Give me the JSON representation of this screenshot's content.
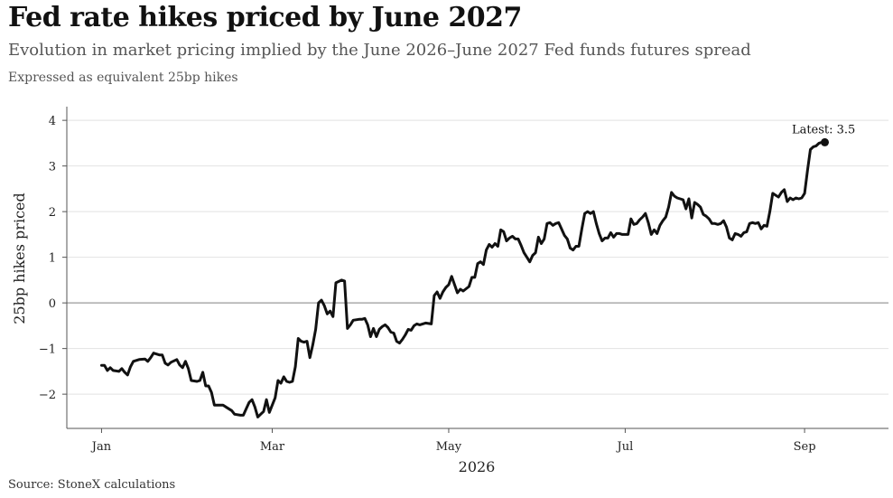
{
  "title": "Fed rate hikes priced by June 2027",
  "subtitle": "Evolution in market pricing implied by the June 2026–June 2027 Fed funds futures spread",
  "note": "Expressed as equivalent 25bp hikes",
  "source": "Source: StoneX calculations",
  "chart_data": {
    "type": "line",
    "title": "Fed rate hikes priced by June 2027",
    "xlabel": "2026",
    "ylabel": "25bp hikes priced",
    "ylim": [
      -2.75,
      4.3
    ],
    "yticks": [
      -2,
      -1,
      0,
      1,
      2,
      3,
      4
    ],
    "ytick_labels": [
      "−2",
      "−1",
      "0",
      "1",
      "2",
      "3",
      "4"
    ],
    "xlim": [
      "2025-12-20",
      "2026-09-30"
    ],
    "xticks": [
      {
        "date": "2026-01-01",
        "label": "Jan"
      },
      {
        "date": "2026-03-01",
        "label": "Mar"
      },
      {
        "date": "2026-05-01",
        "label": "May"
      },
      {
        "date": "2026-07-01",
        "label": "Jul"
      },
      {
        "date": "2026-09-01",
        "label": "Sep"
      }
    ],
    "grid": "horizontal",
    "annotation": {
      "text": "Latest: 3.5",
      "date": "2026-09-16",
      "value": 3.52
    },
    "series": [
      {
        "color": "#111111",
        "points": [
          [
            "2026-01-01",
            -1.37
          ],
          [
            "2026-01-02",
            -1.37
          ],
          [
            "2026-01-03",
            -1.48
          ],
          [
            "2026-01-04",
            -1.42
          ],
          [
            "2026-01-05",
            -1.48
          ],
          [
            "2026-01-07",
            -1.5
          ],
          [
            "2026-01-08",
            -1.44
          ],
          [
            "2026-01-09",
            -1.52
          ],
          [
            "2026-01-10",
            -1.58
          ],
          [
            "2026-01-11",
            -1.4
          ],
          [
            "2026-01-12",
            -1.28
          ],
          [
            "2026-01-14",
            -1.24
          ],
          [
            "2026-01-16",
            -1.23
          ],
          [
            "2026-01-17",
            -1.28
          ],
          [
            "2026-01-18",
            -1.2
          ],
          [
            "2026-01-19",
            -1.1
          ],
          [
            "2026-01-21",
            -1.14
          ],
          [
            "2026-01-22",
            -1.14
          ],
          [
            "2026-01-23",
            -1.32
          ],
          [
            "2026-01-24",
            -1.36
          ],
          [
            "2026-01-25",
            -1.3
          ],
          [
            "2026-01-27",
            -1.24
          ],
          [
            "2026-01-28",
            -1.36
          ],
          [
            "2026-01-29",
            -1.42
          ],
          [
            "2026-01-30",
            -1.28
          ],
          [
            "2026-01-31",
            -1.44
          ],
          [
            "2026-02-01",
            -1.7
          ],
          [
            "2026-02-03",
            -1.72
          ],
          [
            "2026-02-04",
            -1.7
          ],
          [
            "2026-02-05",
            -1.52
          ],
          [
            "2026-02-06",
            -1.82
          ],
          [
            "2026-02-07",
            -1.82
          ],
          [
            "2026-02-08",
            -1.96
          ],
          [
            "2026-02-09",
            -2.24
          ],
          [
            "2026-02-11",
            -2.24
          ],
          [
            "2026-02-12",
            -2.24
          ],
          [
            "2026-02-13",
            -2.28
          ],
          [
            "2026-02-15",
            -2.36
          ],
          [
            "2026-02-16",
            -2.44
          ],
          [
            "2026-02-18",
            -2.46
          ],
          [
            "2026-02-19",
            -2.46
          ],
          [
            "2026-02-20",
            -2.32
          ],
          [
            "2026-02-21",
            -2.18
          ],
          [
            "2026-02-22",
            -2.12
          ],
          [
            "2026-02-23",
            -2.28
          ],
          [
            "2026-02-24",
            -2.5
          ],
          [
            "2026-02-25",
            -2.44
          ],
          [
            "2026-02-26",
            -2.38
          ],
          [
            "2026-02-27",
            -2.12
          ],
          [
            "2026-02-28",
            -2.4
          ],
          [
            "2026-03-02",
            -2.08
          ],
          [
            "2026-03-03",
            -1.7
          ],
          [
            "2026-03-04",
            -1.76
          ],
          [
            "2026-03-05",
            -1.62
          ],
          [
            "2026-03-06",
            -1.72
          ],
          [
            "2026-03-07",
            -1.74
          ],
          [
            "2026-03-08",
            -1.72
          ],
          [
            "2026-03-09",
            -1.4
          ],
          [
            "2026-03-10",
            -0.78
          ],
          [
            "2026-03-11",
            -0.84
          ],
          [
            "2026-03-12",
            -0.86
          ],
          [
            "2026-03-13",
            -0.84
          ],
          [
            "2026-03-14",
            -1.2
          ],
          [
            "2026-03-15",
            -0.92
          ],
          [
            "2026-03-16",
            -0.58
          ],
          [
            "2026-03-17",
            0.0
          ],
          [
            "2026-03-18",
            0.06
          ],
          [
            "2026-03-19",
            -0.06
          ],
          [
            "2026-03-20",
            -0.24
          ],
          [
            "2026-03-21",
            -0.18
          ],
          [
            "2026-03-22",
            -0.3
          ],
          [
            "2026-03-23",
            0.44
          ],
          [
            "2026-03-25",
            0.5
          ],
          [
            "2026-03-26",
            0.48
          ],
          [
            "2026-03-27",
            -0.56
          ],
          [
            "2026-03-28",
            -0.48
          ],
          [
            "2026-03-29",
            -0.38
          ],
          [
            "2026-03-31",
            -0.36
          ],
          [
            "2026-04-01",
            -0.36
          ],
          [
            "2026-04-02",
            -0.34
          ],
          [
            "2026-04-03",
            -0.48
          ],
          [
            "2026-04-04",
            -0.74
          ],
          [
            "2026-04-05",
            -0.56
          ],
          [
            "2026-04-06",
            -0.74
          ],
          [
            "2026-04-07",
            -0.58
          ],
          [
            "2026-04-08",
            -0.52
          ],
          [
            "2026-04-09",
            -0.48
          ],
          [
            "2026-04-10",
            -0.54
          ],
          [
            "2026-04-11",
            -0.64
          ],
          [
            "2026-04-12",
            -0.66
          ],
          [
            "2026-04-13",
            -0.84
          ],
          [
            "2026-04-14",
            -0.88
          ],
          [
            "2026-04-15",
            -0.8
          ],
          [
            "2026-04-16",
            -0.7
          ],
          [
            "2026-04-17",
            -0.58
          ],
          [
            "2026-04-18",
            -0.6
          ],
          [
            "2026-04-19",
            -0.5
          ],
          [
            "2026-04-20",
            -0.46
          ],
          [
            "2026-04-21",
            -0.48
          ],
          [
            "2026-04-22",
            -0.46
          ],
          [
            "2026-04-23",
            -0.44
          ],
          [
            "2026-04-25",
            -0.46
          ],
          [
            "2026-04-26",
            0.16
          ],
          [
            "2026-04-27",
            0.24
          ],
          [
            "2026-04-28",
            0.1
          ],
          [
            "2026-04-29",
            0.24
          ],
          [
            "2026-04-30",
            0.34
          ],
          [
            "2026-05-01",
            0.4
          ],
          [
            "2026-05-02",
            0.58
          ],
          [
            "2026-05-03",
            0.4
          ],
          [
            "2026-05-04",
            0.22
          ],
          [
            "2026-05-05",
            0.3
          ],
          [
            "2026-05-06",
            0.26
          ],
          [
            "2026-05-08",
            0.36
          ],
          [
            "2026-05-09",
            0.56
          ],
          [
            "2026-05-10",
            0.56
          ],
          [
            "2026-05-11",
            0.86
          ],
          [
            "2026-05-12",
            0.9
          ],
          [
            "2026-05-13",
            0.84
          ],
          [
            "2026-05-14",
            1.16
          ],
          [
            "2026-05-15",
            1.28
          ],
          [
            "2026-05-16",
            1.22
          ],
          [
            "2026-05-17",
            1.3
          ],
          [
            "2026-05-18",
            1.24
          ],
          [
            "2026-05-19",
            1.6
          ],
          [
            "2026-05-20",
            1.56
          ],
          [
            "2026-05-21",
            1.36
          ],
          [
            "2026-05-22",
            1.42
          ],
          [
            "2026-05-23",
            1.46
          ],
          [
            "2026-05-24",
            1.4
          ],
          [
            "2026-05-25",
            1.4
          ],
          [
            "2026-05-26",
            1.26
          ],
          [
            "2026-05-27",
            1.1
          ],
          [
            "2026-05-28",
            1.0
          ],
          [
            "2026-05-29",
            0.9
          ],
          [
            "2026-05-30",
            1.04
          ],
          [
            "2026-05-31",
            1.1
          ],
          [
            "2026-06-01",
            1.44
          ],
          [
            "2026-06-02",
            1.3
          ],
          [
            "2026-06-03",
            1.4
          ],
          [
            "2026-06-04",
            1.74
          ],
          [
            "2026-06-05",
            1.76
          ],
          [
            "2026-06-06",
            1.7
          ],
          [
            "2026-06-07",
            1.74
          ],
          [
            "2026-06-08",
            1.76
          ],
          [
            "2026-06-09",
            1.62
          ],
          [
            "2026-06-10",
            1.48
          ],
          [
            "2026-06-11",
            1.4
          ],
          [
            "2026-06-12",
            1.2
          ],
          [
            "2026-06-13",
            1.16
          ],
          [
            "2026-06-14",
            1.24
          ],
          [
            "2026-06-15",
            1.24
          ],
          [
            "2026-06-16",
            1.62
          ],
          [
            "2026-06-17",
            1.96
          ],
          [
            "2026-06-18",
            2.0
          ],
          [
            "2026-06-19",
            1.96
          ],
          [
            "2026-06-20",
            2.0
          ],
          [
            "2026-06-21",
            1.74
          ],
          [
            "2026-06-22",
            1.52
          ],
          [
            "2026-06-23",
            1.36
          ],
          [
            "2026-06-24",
            1.42
          ],
          [
            "2026-06-25",
            1.42
          ],
          [
            "2026-06-26",
            1.54
          ],
          [
            "2026-06-27",
            1.44
          ],
          [
            "2026-06-28",
            1.52
          ],
          [
            "2026-06-29",
            1.52
          ],
          [
            "2026-06-30",
            1.5
          ],
          [
            "2026-07-01",
            1.5
          ],
          [
            "2026-07-02",
            1.5
          ],
          [
            "2026-07-03",
            1.84
          ],
          [
            "2026-07-04",
            1.72
          ],
          [
            "2026-07-05",
            1.74
          ],
          [
            "2026-07-06",
            1.82
          ],
          [
            "2026-07-07",
            1.88
          ],
          [
            "2026-07-08",
            1.96
          ],
          [
            "2026-07-09",
            1.76
          ],
          [
            "2026-07-10",
            1.5
          ],
          [
            "2026-07-11",
            1.6
          ],
          [
            "2026-07-12",
            1.52
          ],
          [
            "2026-07-13",
            1.7
          ],
          [
            "2026-07-14",
            1.8
          ],
          [
            "2026-07-15",
            1.88
          ],
          [
            "2026-07-16",
            2.1
          ],
          [
            "2026-07-17",
            2.42
          ],
          [
            "2026-07-18",
            2.34
          ],
          [
            "2026-07-19",
            2.3
          ],
          [
            "2026-07-20",
            2.28
          ],
          [
            "2026-07-21",
            2.26
          ],
          [
            "2026-07-22",
            2.06
          ],
          [
            "2026-07-23",
            2.28
          ],
          [
            "2026-07-24",
            1.86
          ],
          [
            "2026-07-25",
            2.2
          ],
          [
            "2026-07-26",
            2.16
          ],
          [
            "2026-07-27",
            2.1
          ],
          [
            "2026-07-28",
            1.94
          ],
          [
            "2026-07-29",
            1.9
          ],
          [
            "2026-07-30",
            1.84
          ],
          [
            "2026-07-31",
            1.74
          ],
          [
            "2026-08-01",
            1.74
          ],
          [
            "2026-08-02",
            1.72
          ],
          [
            "2026-08-03",
            1.74
          ],
          [
            "2026-08-04",
            1.8
          ],
          [
            "2026-08-05",
            1.66
          ],
          [
            "2026-08-06",
            1.42
          ],
          [
            "2026-08-07",
            1.38
          ],
          [
            "2026-08-08",
            1.52
          ],
          [
            "2026-08-09",
            1.5
          ],
          [
            "2026-08-10",
            1.46
          ],
          [
            "2026-08-11",
            1.54
          ],
          [
            "2026-08-12",
            1.56
          ],
          [
            "2026-08-13",
            1.74
          ],
          [
            "2026-08-14",
            1.76
          ],
          [
            "2026-08-15",
            1.74
          ],
          [
            "2026-08-16",
            1.76
          ],
          [
            "2026-08-17",
            1.62
          ],
          [
            "2026-08-18",
            1.7
          ],
          [
            "2026-08-19",
            1.68
          ],
          [
            "2026-08-20",
            2.0
          ],
          [
            "2026-08-21",
            2.4
          ],
          [
            "2026-08-22",
            2.36
          ],
          [
            "2026-08-23",
            2.32
          ],
          [
            "2026-08-24",
            2.42
          ],
          [
            "2026-08-25",
            2.48
          ],
          [
            "2026-08-26",
            2.22
          ],
          [
            "2026-08-27",
            2.3
          ],
          [
            "2026-08-28",
            2.26
          ],
          [
            "2026-08-29",
            2.3
          ],
          [
            "2026-08-30",
            2.28
          ],
          [
            "2026-08-31",
            2.3
          ],
          [
            "2026-09-01",
            2.4
          ],
          [
            "2026-09-02",
            2.9
          ],
          [
            "2026-09-03",
            3.36
          ],
          [
            "2026-09-04",
            3.42
          ],
          [
            "2026-09-05",
            3.44
          ],
          [
            "2026-09-06",
            3.5
          ],
          [
            "2026-09-07",
            3.52
          ],
          [
            "2026-09-08",
            3.52
          ]
        ]
      }
    ]
  }
}
